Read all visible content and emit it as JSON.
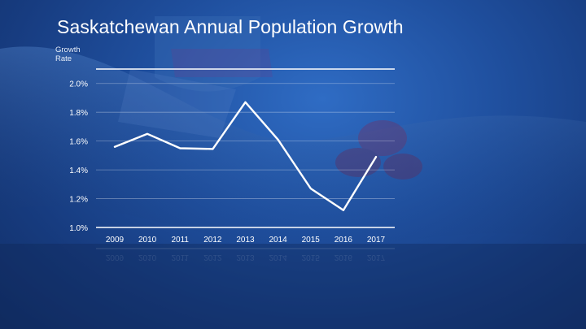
{
  "chart_data": {
    "type": "line",
    "title": "Saskatchewan Annual Population Growth",
    "ylabel": "Growth Rate",
    "xlabel": "",
    "x": [
      "2009",
      "2010",
      "2011",
      "2012",
      "2013",
      "2014",
      "2015",
      "2016",
      "2017"
    ],
    "values": [
      1.56,
      1.65,
      1.55,
      1.545,
      1.87,
      1.61,
      1.27,
      1.12,
      1.49
    ],
    "ylim": [
      1.0,
      2.1
    ],
    "yticks": [
      "1.0%",
      "1.2%",
      "1.4%",
      "1.6%",
      "1.8%",
      "2.0%"
    ],
    "ytick_values": [
      1.0,
      1.2,
      1.4,
      1.6,
      1.8,
      2.0
    ],
    "grid": true,
    "line_color": "#ffffff"
  }
}
